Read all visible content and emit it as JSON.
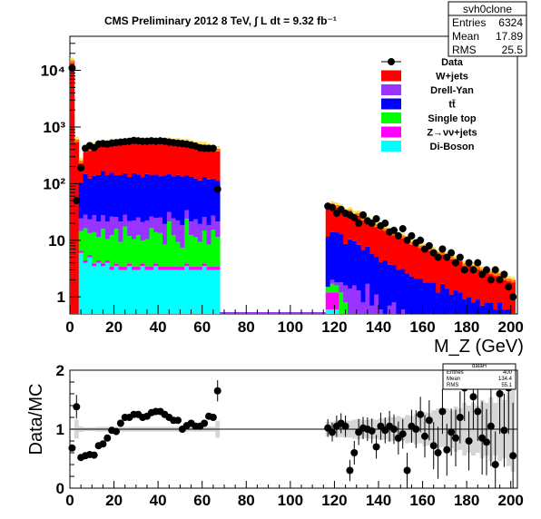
{
  "chart_data": [
    {
      "type": "bar",
      "stacked": true,
      "title": "CMS Preliminary 2012 8 TeV, ∫ L dt = 9.32 fb⁻¹",
      "xlabel": "M_Z (GeV)",
      "ylabel": "",
      "log_y": true,
      "xlim": [
        0,
        203
      ],
      "ylim": [
        0.5,
        40000
      ],
      "x_ticks": [
        0,
        20,
        40,
        60,
        80,
        100,
        120,
        140,
        160,
        180,
        200
      ],
      "y_ticks": [
        {
          "label": "1",
          "value": 1
        },
        {
          "label": "10",
          "value": 10
        },
        {
          "label": "10²",
          "value": 100
        },
        {
          "label": "10³",
          "value": 1000
        },
        {
          "label": "10⁴",
          "value": 10000
        }
      ],
      "stats_box": {
        "title": "svh0clone",
        "rows": [
          [
            "Entries",
            "6324"
          ],
          [
            "Mean",
            "17.89"
          ],
          [
            "RMS",
            "25.5"
          ]
        ]
      },
      "legend": [
        {
          "label": "Data",
          "style": "marker"
        },
        {
          "label": "W+jets",
          "color": "#ff0000"
        },
        {
          "label": "Drell-Yan",
          "color": "#9933ff"
        },
        {
          "label": "tt̄",
          "color": "#0000ff"
        },
        {
          "label": "Single top",
          "color": "#00ff00"
        },
        {
          "label": "Z→νν+jets",
          "color": "#ff00ff"
        },
        {
          "label": "Di-Boson",
          "color": "#00ffff"
        }
      ],
      "legend_position": "top-right",
      "bin_width": 2,
      "stack_bins_low": {
        "x": [
          0,
          2,
          4,
          6,
          8,
          10,
          12,
          14,
          16,
          18,
          20,
          22,
          24,
          26,
          28,
          30,
          32,
          34,
          36,
          38,
          40,
          42,
          44,
          46,
          48,
          50,
          52,
          54,
          56,
          58,
          60,
          62,
          64,
          66
        ],
        "Di-Boson": [
          0,
          0,
          6,
          4,
          5,
          3.5,
          4,
          3.5,
          4,
          3,
          3.5,
          3,
          3,
          3.5,
          3,
          3,
          3.5,
          3,
          3,
          3.5,
          3,
          3,
          3,
          3,
          3,
          3,
          3.5,
          3,
          3,
          3,
          3.5,
          3,
          3,
          3
        ],
        "Z→νν+jets": [
          0,
          0,
          0.5,
          0.4,
          0.4,
          0.4,
          0.4,
          0.4,
          0.4,
          0.4,
          0.4,
          0.4,
          0.4,
          0.4,
          0.4,
          0.4,
          0.4,
          0.4,
          0.4,
          0.4,
          0.4,
          0.4,
          0.4,
          0.4,
          0.4,
          0.4,
          0.4,
          0.4,
          0.4,
          0.4,
          0.4,
          0.4,
          0.4,
          0.4
        ],
        "Single top": [
          0,
          0,
          8,
          12,
          8,
          10,
          7,
          12,
          6,
          9,
          12,
          6,
          14,
          8,
          7,
          9,
          6,
          7,
          13,
          10,
          10,
          5,
          18,
          9,
          6,
          4,
          20,
          9,
          8,
          6,
          11,
          5,
          12,
          8
        ],
        "Drell-Yan": [
          0,
          0,
          10,
          12,
          10,
          14,
          10,
          12,
          11,
          14,
          10,
          12,
          11,
          10,
          12,
          13,
          11,
          12,
          10,
          11,
          12,
          11,
          10,
          12,
          13,
          11,
          10,
          9,
          12,
          10,
          11,
          10,
          12,
          10
        ],
        "tt̄": [
          0,
          0,
          80,
          120,
          100,
          110,
          120,
          140,
          120,
          130,
          115,
          120,
          125,
          110,
          130,
          120,
          110,
          125,
          115,
          120,
          110,
          120,
          115,
          110,
          120,
          115,
          105,
          110,
          100,
          95,
          105,
          100,
          95,
          90
        ],
        "W+jets": [
          15000,
          600,
          150,
          250,
          300,
          330,
          350,
          360,
          380,
          400,
          410,
          410,
          420,
          430,
          440,
          440,
          450,
          440,
          450,
          440,
          450,
          430,
          440,
          420,
          430,
          420,
          410,
          400,
          380,
          380,
          360,
          340,
          310,
          300
        ]
      },
      "stack_bins_high": {
        "x": [
          116,
          118,
          120,
          122,
          124,
          126,
          128,
          130,
          132,
          134,
          136,
          138,
          140,
          142,
          144,
          146,
          148,
          150,
          152,
          154,
          156,
          158,
          160,
          162,
          164,
          166,
          168,
          170,
          172,
          174,
          176,
          178,
          180,
          182,
          184,
          186,
          188,
          190,
          192,
          194,
          196,
          198,
          200
        ],
        "Di-Boson": [
          0.6,
          0.6,
          0.6,
          0,
          0,
          0,
          0,
          0,
          0,
          0,
          0,
          0,
          0,
          0,
          0,
          0,
          0,
          0,
          0,
          0,
          0,
          0,
          0,
          0,
          0,
          0,
          0,
          0,
          0,
          0,
          0,
          0,
          0,
          0,
          0,
          0,
          0,
          0,
          0,
          0,
          0,
          0,
          0
        ],
        "Z→νν+jets": [
          0.6,
          0.6,
          0.6,
          0,
          0,
          0,
          0,
          0,
          0,
          0,
          0,
          0,
          0,
          0,
          0,
          0,
          0,
          0,
          0,
          0,
          0,
          0,
          0,
          0,
          0,
          0,
          0,
          0,
          0,
          0,
          0,
          0,
          0,
          0,
          0,
          0,
          0,
          0,
          0,
          0,
          0,
          0,
          0
        ],
        "Single top": [
          0.3,
          0.5,
          0.4,
          1.2,
          0.8,
          0.5,
          0.4,
          0.3,
          0,
          0.5,
          0,
          0,
          0,
          0,
          0,
          0,
          0,
          0,
          0,
          0,
          0,
          0,
          0,
          0,
          0,
          0,
          0,
          0,
          0,
          0,
          0,
          0,
          0,
          0,
          0,
          0,
          0,
          0,
          0,
          0,
          0,
          0,
          0
        ],
        "Drell-Yan": [
          0,
          0.3,
          0.2,
          0.6,
          0.8,
          0.9,
          1.2,
          1.0,
          0.8,
          1.2,
          0.7,
          1.1,
          0.6,
          0.4,
          0.7,
          0.8,
          0.5,
          0.6,
          0.4,
          0.3,
          0.5,
          0.4,
          0.3,
          0.5,
          0.4,
          0.2,
          0.5,
          0.4,
          0.3,
          0.3,
          0.4,
          0.2,
          0.3,
          0.2,
          0.3,
          0.2,
          0.3,
          0.2,
          0.2,
          0.3,
          0.2,
          0.2,
          0.2
        ],
        "tt̄": [
          10,
          12,
          12,
          11,
          7,
          9,
          8,
          7,
          6,
          6,
          5,
          4,
          3.5,
          4,
          3,
          2.8,
          2.5,
          2.5,
          2.2,
          2.0,
          1.6,
          1.7,
          1.5,
          1.3,
          1.4,
          1.0,
          1.2,
          1.0,
          0.8,
          1.0,
          0.8,
          0.7,
          0.7,
          0.6,
          0.6,
          0.5,
          0.5,
          0.6,
          0.4,
          0.5,
          0.4,
          0.4,
          0.3
        ],
        "W+jets": [
          28,
          30,
          28,
          26,
          24,
          24,
          20,
          22,
          18,
          16,
          16,
          14,
          13,
          12,
          10,
          10,
          9,
          9,
          8,
          7,
          7,
          6,
          6,
          5.5,
          5,
          5,
          4.5,
          4,
          4,
          3.5,
          3.5,
          3,
          3,
          2.8,
          2.5,
          2.4,
          2.2,
          2,
          2,
          1.8,
          1.6,
          1.5,
          1.5
        ]
      },
      "data_points": {
        "x": [
          1,
          3,
          5,
          7,
          9,
          11,
          13,
          15,
          17,
          19,
          21,
          23,
          25,
          27,
          29,
          31,
          33,
          35,
          37,
          39,
          41,
          43,
          45,
          47,
          49,
          51,
          53,
          55,
          57,
          59,
          61,
          63,
          65,
          67,
          117,
          119,
          121,
          123,
          125,
          127,
          129,
          131,
          133,
          135,
          137,
          139,
          141,
          143,
          145,
          147,
          149,
          151,
          153,
          155,
          157,
          159,
          161,
          163,
          165,
          167,
          169,
          171,
          173,
          175,
          177,
          179,
          181,
          183,
          185,
          187,
          189,
          191,
          193,
          195,
          197,
          199,
          201
        ],
        "y": [
          11000,
          50,
          190,
          420,
          470,
          430,
          500,
          510,
          500,
          520,
          530,
          540,
          550,
          560,
          580,
          570,
          560,
          560,
          570,
          560,
          570,
          560,
          540,
          530,
          520,
          510,
          500,
          480,
          460,
          430,
          420,
          420,
          420,
          80,
          40,
          38,
          30,
          35,
          30,
          28,
          25,
          20,
          28,
          22,
          20,
          24,
          18,
          20,
          14,
          15,
          12,
          16,
          10,
          12,
          9,
          10,
          7,
          8,
          6,
          5,
          7,
          5,
          6,
          4,
          5,
          3,
          4,
          3,
          4,
          2.5,
          3,
          2,
          3,
          2,
          2.5,
          1.5,
          1
        ]
      }
    },
    {
      "type": "scatter",
      "title": "",
      "xlabel": "",
      "ylabel": "Data/MC",
      "xlim": [
        0,
        203
      ],
      "ylim": [
        0,
        2
      ],
      "x_ticks": [
        0,
        20,
        40,
        60,
        80,
        100,
        120,
        140,
        160,
        180,
        200
      ],
      "y_ticks": [
        0,
        1,
        2
      ],
      "reference_line": 1,
      "stats_box": {
        "title": "dataH",
        "rows": [
          [
            "Entries",
            "400"
          ],
          [
            "Mean",
            "134.4"
          ],
          [
            "RMS",
            "55.1"
          ]
        ]
      },
      "x": [
        1,
        3,
        5,
        7,
        9,
        11,
        13,
        15,
        17,
        19,
        21,
        23,
        25,
        27,
        29,
        31,
        33,
        35,
        37,
        39,
        41,
        43,
        45,
        47,
        49,
        51,
        53,
        55,
        57,
        59,
        61,
        63,
        65,
        67,
        117,
        119,
        121,
        123,
        125,
        127,
        129,
        131,
        133,
        135,
        137,
        139,
        141,
        143,
        145,
        147,
        149,
        151,
        153,
        155,
        157,
        159,
        161,
        163,
        165,
        167,
        169,
        171,
        173,
        175,
        177,
        179,
        181,
        183,
        185,
        187,
        189,
        191,
        193,
        195,
        197,
        199,
        201
      ],
      "y": [
        0.68,
        1.38,
        0.52,
        0.55,
        0.57,
        0.56,
        0.72,
        0.75,
        0.85,
        0.98,
        0.96,
        1.1,
        1.2,
        1.2,
        1.25,
        1.25,
        1.2,
        1.22,
        1.28,
        1.3,
        1.3,
        1.25,
        1.2,
        1.15,
        1.15,
        1.0,
        1.06,
        1.1,
        1.05,
        1.05,
        1.1,
        1.22,
        1.2,
        1.65,
        1.02,
        0.95,
        1.05,
        1.1,
        1.05,
        0.3,
        0.6,
        0.95,
        1.02,
        1.0,
        0.97,
        0.7,
        1.05,
        0.98,
        1.05,
        1.0,
        0.85,
        0.92,
        0.3,
        1.05,
        1.0,
        1.25,
        0.88,
        1.15,
        0.72,
        0.6,
        1.3,
        0.65,
        0.95,
        0.85,
        1.2,
        1.7,
        0.8,
        1.55,
        1.3,
        0.85,
        0.78,
        1.05,
        0.4,
        1.6,
        0.98,
        1.7,
        0.55
      ],
      "y_err": [
        0.02,
        0.2,
        0.06,
        0.04,
        0.04,
        0.04,
        0.05,
        0.05,
        0.05,
        0.05,
        0.05,
        0.05,
        0.05,
        0.05,
        0.05,
        0.05,
        0.05,
        0.05,
        0.05,
        0.05,
        0.05,
        0.05,
        0.05,
        0.05,
        0.05,
        0.05,
        0.05,
        0.05,
        0.05,
        0.05,
        0.05,
        0.05,
        0.05,
        0.18,
        0.15,
        0.16,
        0.18,
        0.17,
        0.18,
        0.18,
        0.2,
        0.22,
        0.19,
        0.2,
        0.21,
        0.2,
        0.23,
        0.22,
        0.26,
        0.25,
        0.28,
        0.25,
        0.3,
        0.28,
        0.32,
        0.3,
        0.36,
        0.34,
        0.4,
        0.44,
        0.38,
        0.44,
        0.4,
        0.48,
        0.44,
        0.56,
        0.5,
        0.56,
        0.5,
        0.62,
        0.56,
        0.68,
        0.56,
        0.68,
        0.62,
        0.78,
        0.9
      ]
    }
  ]
}
